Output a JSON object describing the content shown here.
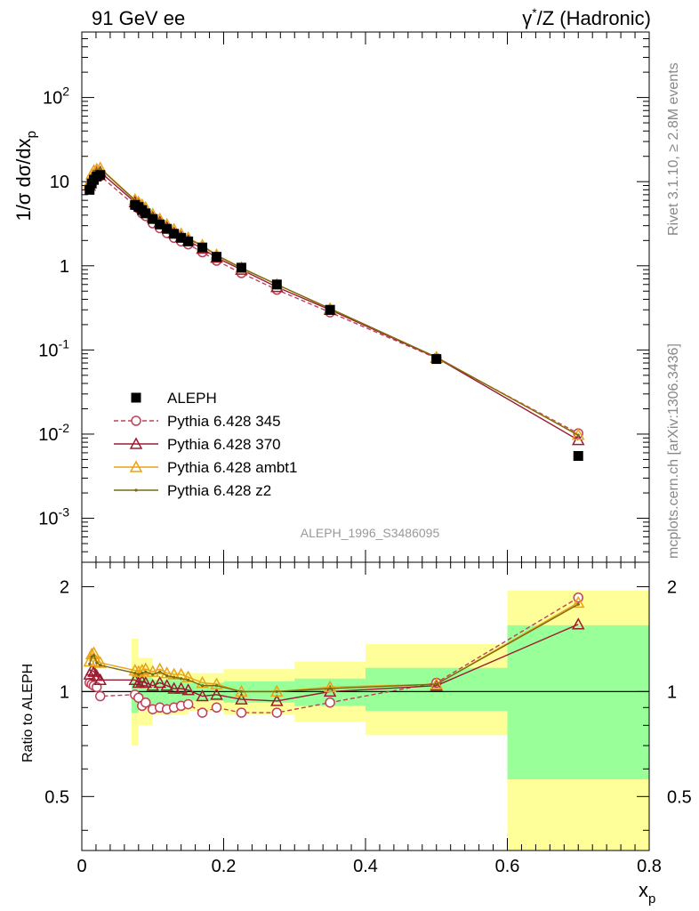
{
  "header": {
    "left": "91 GeV ee",
    "right": "γ*/Z (Hadronic)"
  },
  "side": {
    "rivet": "Rivet 3.1.10, ≥ 2.8M events",
    "mcplots": "mcplots.cern.ch [arXiv:1306.3436]"
  },
  "analysis_label": "ALEPH_1996_S3486095",
  "legend": {
    "entries": [
      {
        "label": "ALEPH",
        "color": "#000000",
        "marker": "square",
        "line": "none"
      },
      {
        "label": "Pythia 6.428 345",
        "color": "#c0405a",
        "marker": "open-circle",
        "line": "dashed"
      },
      {
        "label": "Pythia 6.428 370",
        "color": "#9b1b30",
        "marker": "open-triangle",
        "line": "solid"
      },
      {
        "label": "Pythia 6.428 ambt1",
        "color": "#e8a317",
        "marker": "open-triangle",
        "line": "solid"
      },
      {
        "label": "Pythia 6.428 z2",
        "color": "#7a6a10",
        "marker": "dot",
        "line": "solid"
      }
    ]
  },
  "chart_data": [
    {
      "type": "scatter",
      "panel": "main",
      "ylabel": "1/σ dσ/dx_p",
      "xlim": [
        0,
        0.8
      ],
      "ylim": [
        0.0003,
        600
      ],
      "yscale": "log",
      "y_tick_labels": [
        "10^-3",
        "10^-2",
        "10^-1",
        "1",
        "10",
        "10^2"
      ],
      "x": [
        0.011,
        0.014,
        0.017,
        0.021,
        0.026,
        0.075,
        0.08,
        0.085,
        0.09,
        0.1,
        0.11,
        0.12,
        0.13,
        0.14,
        0.15,
        0.17,
        0.19,
        0.225,
        0.275,
        0.35,
        0.5,
        0.7
      ],
      "series": [
        {
          "name": "ALEPH",
          "values": [
            8.0,
            9.5,
            10.5,
            11.5,
            12.0,
            5.3,
            5.0,
            4.6,
            4.2,
            3.6,
            3.1,
            2.75,
            2.4,
            2.15,
            1.95,
            1.65,
            1.28,
            0.95,
            0.6,
            0.3,
            0.078,
            0.0055
          ]
        },
        {
          "name": "Pythia 6.428 345",
          "values": [
            8.5,
            10.0,
            11.0,
            11.8,
            11.7,
            5.2,
            4.8,
            4.2,
            3.9,
            3.2,
            2.8,
            2.45,
            2.15,
            1.95,
            1.8,
            1.45,
            1.15,
            0.82,
            0.52,
            0.28,
            0.08,
            0.0102
          ]
        },
        {
          "name": "Pythia 6.428 370",
          "values": [
            9.0,
            11.0,
            12.0,
            12.8,
            13.0,
            5.7,
            5.3,
            4.9,
            4.45,
            3.75,
            3.3,
            2.85,
            2.45,
            2.2,
            1.98,
            1.6,
            1.25,
            0.9,
            0.56,
            0.3,
            0.081,
            0.0085
          ]
        },
        {
          "name": "Pythia 6.428 ambt1",
          "values": [
            9.8,
            12.2,
            13.5,
            14.0,
            14.5,
            6.1,
            5.7,
            5.3,
            4.9,
            4.1,
            3.6,
            3.1,
            2.7,
            2.4,
            2.15,
            1.75,
            1.35,
            0.95,
            0.6,
            0.31,
            0.082,
            0.0098
          ]
        },
        {
          "name": "Pythia 6.428 z2",
          "values": [
            9.6,
            12.0,
            13.3,
            13.9,
            14.3,
            6.0,
            5.6,
            5.2,
            4.8,
            4.05,
            3.55,
            3.05,
            2.65,
            2.35,
            2.1,
            1.72,
            1.33,
            0.94,
            0.6,
            0.31,
            0.082,
            0.0097
          ]
        }
      ]
    },
    {
      "type": "scatter",
      "panel": "ratio",
      "xlabel": "x_p",
      "ylabel": "Ratio to ALEPH",
      "xlim": [
        0,
        0.8
      ],
      "ylim": [
        0.35,
        2.35
      ],
      "yscale": "log",
      "x_ticks": [
        0,
        0.2,
        0.4,
        0.6,
        0.8
      ],
      "y_ticks": [
        0.5,
        1,
        2
      ],
      "bands": [
        {
          "x0": 0.07,
          "x1": 0.08,
          "stat": [
            0.87,
            1.14
          ],
          "total": [
            0.7,
            1.42
          ]
        },
        {
          "x0": 0.08,
          "x1": 0.1,
          "stat": [
            0.9,
            1.1
          ],
          "total": [
            0.8,
            1.25
          ]
        },
        {
          "x0": 0.1,
          "x1": 0.15,
          "stat": [
            0.92,
            1.08
          ],
          "total": [
            0.86,
            1.14
          ]
        },
        {
          "x0": 0.15,
          "x1": 0.2,
          "stat": [
            0.94,
            1.06
          ],
          "total": [
            0.88,
            1.13
          ]
        },
        {
          "x0": 0.2,
          "x1": 0.3,
          "stat": [
            0.93,
            1.07
          ],
          "total": [
            0.86,
            1.16
          ]
        },
        {
          "x0": 0.3,
          "x1": 0.4,
          "stat": [
            0.91,
            1.09
          ],
          "total": [
            0.82,
            1.22
          ]
        },
        {
          "x0": 0.4,
          "x1": 0.6,
          "stat": [
            0.88,
            1.17
          ],
          "total": [
            0.75,
            1.37
          ]
        },
        {
          "x0": 0.6,
          "x1": 0.8,
          "stat": [
            0.56,
            1.55
          ],
          "total": [
            0.35,
            1.95
          ]
        }
      ],
      "x": [
        0.011,
        0.014,
        0.017,
        0.021,
        0.026,
        0.075,
        0.08,
        0.085,
        0.09,
        0.1,
        0.11,
        0.12,
        0.13,
        0.14,
        0.15,
        0.17,
        0.19,
        0.225,
        0.275,
        0.35,
        0.5,
        0.7
      ],
      "series": [
        {
          "name": "Pythia 6.428 345",
          "values": [
            1.06,
            1.05,
            1.04,
            1.03,
            0.97,
            0.98,
            0.96,
            0.91,
            0.93,
            0.89,
            0.9,
            0.89,
            0.9,
            0.91,
            0.92,
            0.87,
            0.9,
            0.87,
            0.87,
            0.93,
            1.06,
            1.86
          ]
        },
        {
          "name": "Pythia 6.428 370",
          "values": [
            1.12,
            1.15,
            1.14,
            1.11,
            1.08,
            1.08,
            1.06,
            1.07,
            1.06,
            1.04,
            1.06,
            1.04,
            1.02,
            1.02,
            1.01,
            0.97,
            0.98,
            0.95,
            0.94,
            1.0,
            1.04,
            1.56
          ]
        },
        {
          "name": "Pythia 6.428 ambt1",
          "values": [
            1.22,
            1.28,
            1.29,
            1.22,
            1.21,
            1.15,
            1.14,
            1.15,
            1.16,
            1.14,
            1.16,
            1.13,
            1.12,
            1.12,
            1.1,
            1.06,
            1.05,
            1.0,
            1.0,
            1.03,
            1.05,
            1.8
          ]
        },
        {
          "name": "Pythia 6.428 z2",
          "values": [
            1.2,
            1.26,
            1.27,
            1.21,
            1.19,
            1.13,
            1.12,
            1.13,
            1.14,
            1.12,
            1.14,
            1.11,
            1.1,
            1.09,
            1.08,
            1.04,
            1.04,
            1.0,
            1.0,
            1.02,
            1.05,
            1.78
          ]
        }
      ]
    }
  ]
}
